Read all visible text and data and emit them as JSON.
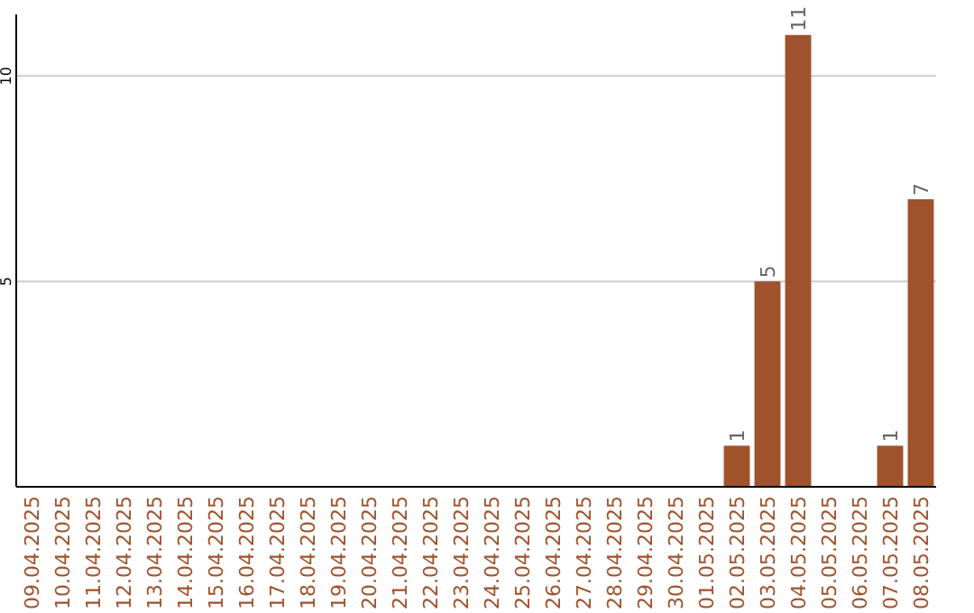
{
  "chart_data": {
    "type": "bar",
    "categories": [
      "09.04.2025",
      "10.04.2025",
      "11.04.2025",
      "12.04.2025",
      "13.04.2025",
      "14.04.2025",
      "15.04.2025",
      "16.04.2025",
      "17.04.2025",
      "18.04.2025",
      "19.04.2025",
      "20.04.2025",
      "21.04.2025",
      "22.04.2025",
      "23.04.2025",
      "24.04.2025",
      "25.04.2025",
      "26.04.2025",
      "27.04.2025",
      "28.04.2025",
      "29.04.2025",
      "30.04.2025",
      "01.05.2025",
      "02.05.2025",
      "03.05.2025",
      "04.05.2025",
      "05.05.2025",
      "06.05.2025",
      "07.05.2025",
      "08.05.2025"
    ],
    "values": [
      0,
      0,
      0,
      0,
      0,
      0,
      0,
      0,
      0,
      0,
      0,
      0,
      0,
      0,
      0,
      0,
      0,
      0,
      0,
      0,
      0,
      0,
      0,
      1,
      5,
      11,
      0,
      0,
      1,
      7
    ],
    "value_labels": [
      null,
      null,
      null,
      null,
      null,
      null,
      null,
      null,
      null,
      null,
      null,
      null,
      null,
      null,
      null,
      null,
      null,
      null,
      null,
      null,
      null,
      null,
      null,
      "1",
      "5",
      "11",
      null,
      null,
      "1",
      "7"
    ],
    "color": "#a0522d",
    "ylim": [
      0,
      11.5
    ],
    "yticks": [
      5,
      10
    ],
    "grid": "y"
  }
}
